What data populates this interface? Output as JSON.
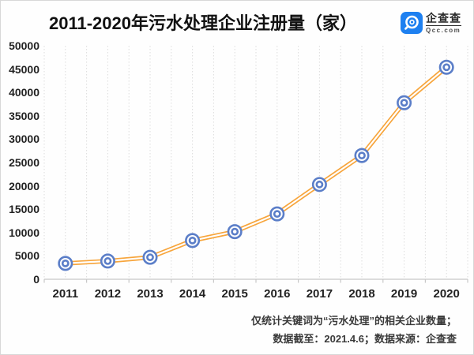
{
  "title": "2011-2020年污水处理企业注册量（家）",
  "logo": {
    "icon": "qcc-magnifier-icon",
    "name": "企查查",
    "domain": "Qcc.com",
    "badge_color": "#1E80F0"
  },
  "footnotes": [
    "仅统计关键词为“污水处理”的相关企业数量；",
    "数据截至：2021.4.6；数据来源：企查查"
  ],
  "colors": {
    "line": "#F7A53C",
    "line_core": "#FFFFFF",
    "marker_stroke": "#5B7EC8",
    "marker_fill": "#FFFFFF",
    "grid": "#DCDCDC",
    "axis": "#C8C8C8",
    "title_text": "#111111",
    "label_text": "#222222"
  },
  "chart_data": {
    "type": "line",
    "title": "2011-2020年污水处理企业注册量（家）",
    "categories": [
      "2011",
      "2012",
      "2013",
      "2014",
      "2015",
      "2016",
      "2017",
      "2018",
      "2019",
      "2020"
    ],
    "values": [
      3400,
      3900,
      4700,
      8300,
      10200,
      14000,
      20300,
      26500,
      37800,
      45400
    ],
    "yticks": [
      0,
      5000,
      10000,
      15000,
      20000,
      25000,
      30000,
      35000,
      40000,
      45000,
      50000
    ],
    "ylim": [
      0,
      50000
    ],
    "xlabel": "",
    "ylabel": "",
    "legend": null,
    "grid": "vertical-dotted-only",
    "marker": "double-ring-circle"
  }
}
